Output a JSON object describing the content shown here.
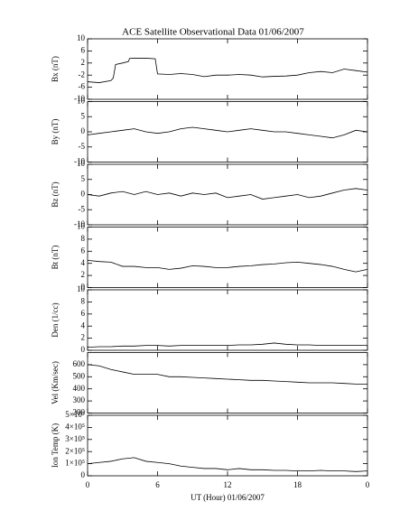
{
  "title": "ACE Satellite Observational Data   01/06/2007",
  "chart_data": [
    {
      "type": "line",
      "ylabel": "Bx (nT)",
      "xlim": [
        0,
        24
      ],
      "ylim": [
        -10,
        10
      ],
      "yticks": [
        -10,
        -6,
        -2,
        2,
        6,
        10
      ],
      "color": "#000000",
      "x": [
        0,
        1,
        2,
        2.2,
        2.4,
        3,
        3.5,
        3.6,
        4,
        5,
        5.8,
        6,
        7,
        8,
        9,
        10,
        11,
        12,
        13,
        14,
        15,
        16,
        17,
        18,
        19,
        20,
        21,
        22,
        23,
        24
      ],
      "values": [
        -4.2,
        -4.5,
        -3.8,
        -3,
        1.5,
        2,
        2.5,
        3.5,
        3.6,
        3.6,
        3.4,
        -1.6,
        -1.8,
        -1.5,
        -1.8,
        -2.5,
        -2,
        -2,
        -1.8,
        -2,
        -2.6,
        -2.4,
        -2.3,
        -2,
        -1.2,
        -0.8,
        -1.2,
        0,
        -0.5,
        -1
      ]
    },
    {
      "type": "line",
      "ylabel": "By (nT)",
      "xlim": [
        0,
        24
      ],
      "ylim": [
        -10,
        10
      ],
      "yticks": [
        -10,
        -5,
        0,
        5,
        10
      ],
      "color": "#000000",
      "x": [
        0,
        1,
        2,
        3,
        4,
        5,
        6,
        7,
        8,
        9,
        10,
        11,
        12,
        13,
        14,
        15,
        16,
        17,
        18,
        19,
        20,
        21,
        22,
        23,
        24
      ],
      "values": [
        -1,
        -0.5,
        0,
        0.5,
        1,
        0,
        -0.5,
        0,
        1,
        1.5,
        1,
        0.5,
        0,
        0.5,
        1,
        0.5,
        0,
        0,
        -0.5,
        -1,
        -1.5,
        -2,
        -1,
        0.5,
        0
      ]
    },
    {
      "type": "line",
      "ylabel": "Bz (nT)",
      "xlim": [
        0,
        24
      ],
      "ylim": [
        -10,
        10
      ],
      "yticks": [
        -10,
        -5,
        0,
        5,
        10
      ],
      "color": "#000000",
      "x": [
        0,
        1,
        2,
        3,
        4,
        5,
        6,
        7,
        8,
        9,
        10,
        11,
        12,
        13,
        14,
        15,
        16,
        17,
        18,
        19,
        20,
        21,
        22,
        23,
        24
      ],
      "values": [
        0,
        -0.5,
        0.5,
        1,
        0,
        1,
        0,
        0.5,
        -0.5,
        0.5,
        0,
        0.5,
        -1,
        -0.5,
        0,
        -1.5,
        -1,
        -0.5,
        0,
        -1,
        -0.5,
        0.5,
        1.5,
        2,
        1.5
      ]
    },
    {
      "type": "line",
      "ylabel": "Bt (nT)",
      "xlim": [
        0,
        24
      ],
      "ylim": [
        0,
        10
      ],
      "yticks": [
        0,
        2,
        4,
        6,
        8,
        10
      ],
      "color": "#000000",
      "x": [
        0,
        1,
        2,
        3,
        4,
        5,
        6,
        7,
        8,
        9,
        10,
        11,
        12,
        13,
        14,
        15,
        16,
        17,
        18,
        19,
        20,
        21,
        22,
        23,
        24
      ],
      "values": [
        4.5,
        4.3,
        4.2,
        3.5,
        3.5,
        3.3,
        3.3,
        3,
        3.2,
        3.6,
        3.5,
        3.3,
        3.3,
        3.5,
        3.6,
        3.8,
        3.9,
        4.1,
        4.2,
        4,
        3.8,
        3.5,
        3,
        2.6,
        3
      ]
    },
    {
      "type": "line",
      "ylabel": "Den (1/cc)",
      "xlim": [
        0,
        24
      ],
      "ylim": [
        0,
        10
      ],
      "yticks": [
        0,
        2,
        4,
        6,
        8,
        10
      ],
      "color": "#000000",
      "x": [
        0,
        1,
        2,
        3,
        4,
        5,
        6,
        7,
        8,
        9,
        10,
        11,
        12,
        13,
        14,
        15,
        16,
        17,
        18,
        19,
        20,
        21,
        22,
        23,
        24
      ],
      "values": [
        0.5,
        0.6,
        0.6,
        0.7,
        0.7,
        0.8,
        0.8,
        0.7,
        0.8,
        0.8,
        0.8,
        0.8,
        0.8,
        0.9,
        0.9,
        1,
        1.2,
        1,
        0.9,
        0.9,
        0.8,
        0.8,
        0.8,
        0.8,
        0.8
      ]
    },
    {
      "type": "line",
      "ylabel": "Vel (Km/sec)",
      "xlim": [
        0,
        24
      ],
      "ylim": [
        200,
        700
      ],
      "yticks": [
        200,
        300,
        400,
        500,
        600
      ],
      "color": "#000000",
      "x": [
        0,
        1,
        2,
        3,
        4,
        5,
        6,
        7,
        8,
        9,
        10,
        11,
        12,
        13,
        14,
        15,
        16,
        17,
        18,
        19,
        20,
        21,
        22,
        23,
        24
      ],
      "values": [
        600,
        590,
        560,
        540,
        520,
        520,
        520,
        500,
        500,
        495,
        490,
        485,
        480,
        475,
        470,
        470,
        465,
        460,
        455,
        450,
        450,
        450,
        445,
        440,
        440
      ]
    },
    {
      "type": "line",
      "ylabel": "Ion Temp (K)",
      "xlabel": "UT (Hour)   01/06/2007",
      "xlim": [
        0,
        24
      ],
      "ylim": [
        0,
        500000
      ],
      "yticks": [
        0,
        {
          "value": 100000,
          "label": "1×10⁵"
        },
        {
          "value": 200000,
          "label": "2×10⁵"
        },
        {
          "value": 300000,
          "label": "3×10⁵"
        },
        {
          "value": 400000,
          "label": "4×10⁵"
        },
        {
          "value": 500000,
          "label": "5×10⁵"
        }
      ],
      "xticks": [
        0,
        6,
        12,
        18,
        {
          "value": 24,
          "label": "0"
        }
      ],
      "color": "#000000",
      "x": [
        0,
        1,
        2,
        3,
        4,
        5,
        6,
        7,
        8,
        9,
        10,
        11,
        12,
        13,
        14,
        15,
        16,
        17,
        18,
        19,
        20,
        21,
        22,
        23,
        24
      ],
      "values": [
        100000,
        110000,
        120000,
        140000,
        150000,
        120000,
        110000,
        100000,
        80000,
        70000,
        60000,
        60000,
        50000,
        60000,
        50000,
        50000,
        45000,
        45000,
        40000,
        40000,
        45000,
        40000,
        40000,
        35000,
        40000
      ]
    }
  ]
}
